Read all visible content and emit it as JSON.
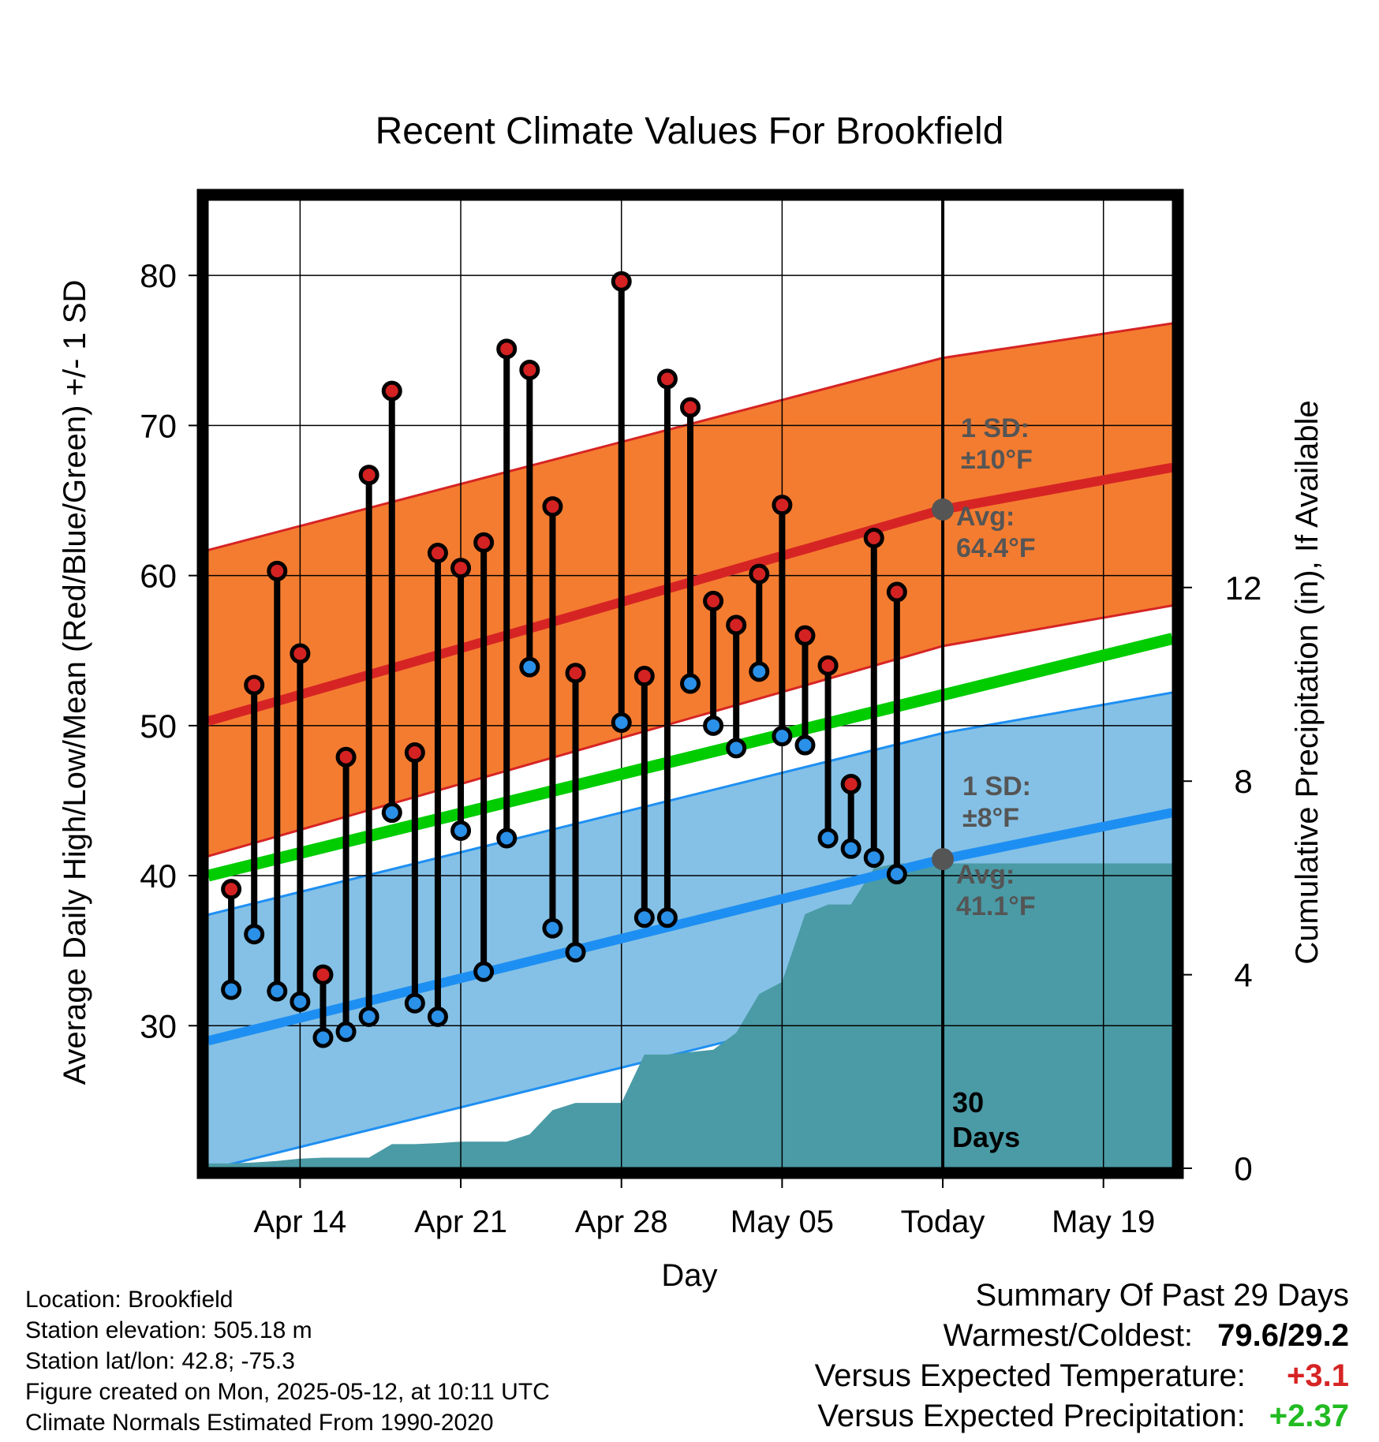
{
  "chart_data": {
    "type": "line",
    "title": "Recent Climate Values For Brookfield",
    "xlabel": "Day",
    "ylabel": "Average Daily High/Low/Mean (Red/Blue/Green) +/- 1 SD",
    "y2label": "Cumulative Precipitation (in), If Available",
    "ylim": [
      20.5,
      85
    ],
    "y2lim": [
      0,
      20
    ],
    "xlim": [
      "2025-04-10",
      "2025-05-22"
    ],
    "yticks": [
      30,
      40,
      50,
      60,
      70,
      80
    ],
    "y2ticks": [
      0,
      4,
      8,
      12
    ],
    "x_tick_dates": [
      "2025-04-14",
      "2025-04-21",
      "2025-04-28",
      "2025-05-05",
      "2025-05-12",
      "2025-05-19"
    ],
    "x_tick_labels": [
      "Apr 14",
      "Apr 21",
      "Apr 28",
      "May 05",
      "Today",
      "May 19"
    ],
    "grid": true,
    "today": "2025-05-12",
    "today_label": "30\nDays",
    "colors": {
      "high_band": "#f47c30",
      "high_band_edge": "#d62424",
      "high_mean": "#d62424",
      "low_band": "#85c1e6",
      "low_band_edge": "#1e8ff2",
      "low_mean": "#1e8ff2",
      "mean": "#00cc00",
      "precip": "#4a9ba6",
      "high_marker": "#d42222",
      "low_marker": "#2a90e8",
      "annotation": "#555555"
    },
    "normal_high": {
      "dates": [
        "2025-04-10",
        "2025-05-12",
        "2025-05-22"
      ],
      "mean": [
        50.3,
        64.4,
        67.2
      ],
      "upper": [
        61.7,
        74.5,
        76.8
      ],
      "lower": [
        41.3,
        55.3,
        58.0
      ]
    },
    "normal_low": {
      "dates": [
        "2025-04-10",
        "2025-05-12",
        "2025-05-22"
      ],
      "mean": [
        29.0,
        41.1,
        44.2
      ],
      "upper": [
        37.4,
        49.5,
        52.2
      ],
      "lower": [
        20.4,
        32.5,
        35.5
      ]
    },
    "normal_mean": {
      "dates": [
        "2025-04-10",
        "2025-05-22"
      ],
      "values": [
        40.0,
        55.8
      ]
    },
    "daily": {
      "dates": [
        "2025-04-11",
        "2025-04-12",
        "2025-04-13",
        "2025-04-14",
        "2025-04-15",
        "2025-04-16",
        "2025-04-17",
        "2025-04-18",
        "2025-04-19",
        "2025-04-20",
        "2025-04-21",
        "2025-04-22",
        "2025-04-23",
        "2025-04-24",
        "2025-04-25",
        "2025-04-26",
        "2025-04-27",
        "2025-04-28",
        "2025-04-29",
        "2025-04-30",
        "2025-05-01",
        "2025-05-02",
        "2025-05-03",
        "2025-05-04",
        "2025-05-05",
        "2025-05-06",
        "2025-05-07",
        "2025-05-08",
        "2025-05-09",
        "2025-05-10",
        "2025-05-11"
      ],
      "high": [
        39.1,
        52.7,
        60.3,
        54.8,
        33.4,
        47.9,
        66.7,
        72.3,
        48.2,
        61.5,
        60.5,
        62.2,
        75.1,
        73.7,
        64.6,
        53.5,
        null,
        79.6,
        53.3,
        73.1,
        71.2,
        58.3,
        56.7,
        60.1,
        64.7,
        56.0,
        54.0,
        46.1,
        62.5,
        58.9,
        null
      ],
      "low": [
        32.4,
        36.1,
        32.3,
        31.6,
        29.2,
        29.6,
        30.6,
        44.2,
        31.5,
        30.6,
        43.0,
        33.6,
        42.5,
        53.9,
        36.5,
        34.9,
        null,
        50.2,
        37.2,
        37.2,
        52.8,
        50.0,
        48.5,
        53.6,
        49.3,
        48.7,
        42.5,
        41.8,
        41.2,
        40.1,
        null
      ]
    },
    "precip": {
      "dates": [
        "2025-04-10",
        "2025-04-11",
        "2025-04-12",
        "2025-04-13",
        "2025-04-14",
        "2025-04-15",
        "2025-04-16",
        "2025-04-17",
        "2025-04-18",
        "2025-04-19",
        "2025-04-20",
        "2025-04-21",
        "2025-04-22",
        "2025-04-23",
        "2025-04-24",
        "2025-04-25",
        "2025-04-26",
        "2025-04-27",
        "2025-04-28",
        "2025-04-29",
        "2025-04-30",
        "2025-05-01",
        "2025-05-02",
        "2025-05-03",
        "2025-05-04",
        "2025-05-05",
        "2025-05-06",
        "2025-05-07",
        "2025-05-08",
        "2025-05-09",
        "2025-05-10",
        "2025-05-11",
        "2025-05-22"
      ],
      "values": [
        0.1,
        0.1,
        0.12,
        0.15,
        0.2,
        0.22,
        0.22,
        0.22,
        0.5,
        0.5,
        0.52,
        0.55,
        0.55,
        0.55,
        0.7,
        1.2,
        1.35,
        1.35,
        1.35,
        2.35,
        2.35,
        2.4,
        2.45,
        2.8,
        3.6,
        3.85,
        5.25,
        5.45,
        5.45,
        6.2,
        6.3,
        6.3,
        6.3
      ]
    },
    "annotations": {
      "high_sd": "1 SD:\n±10°F",
      "high_avg": "Avg:\n64.4°F",
      "low_sd": "1 SD:\n±8°F",
      "low_avg": "Avg:\n41.1°F"
    }
  },
  "footer": {
    "location": "Location: Brookfield",
    "elevation": "Station elevation: 505.18 m",
    "latlon": "Station lat/lon: 42.8; -75.3",
    "created": "Figure created on Mon, 2025-05-12, at 10:11 UTC",
    "normals": "Climate Normals Estimated From 1990-2020"
  },
  "summary": {
    "heading": "Summary Of Past 29 Days",
    "warmest_label": "Warmest/Coldest:",
    "warmest_value": "79.6/29.2",
    "temp_label": "Versus Expected Temperature:",
    "temp_value": "+3.1",
    "temp_color": "#d62424",
    "precip_label": "Versus Expected Precipitation:",
    "precip_value": "+2.37",
    "precip_color": "#22bb22"
  }
}
